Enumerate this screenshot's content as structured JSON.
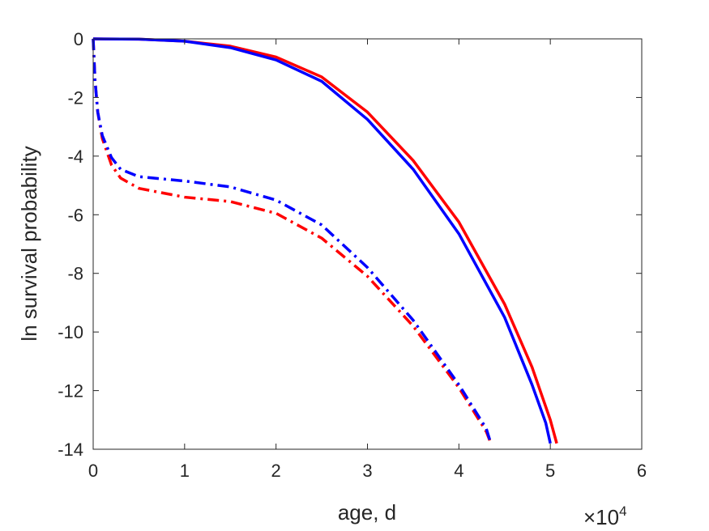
{
  "chart_data": {
    "type": "line",
    "title": "",
    "xlabel": "age, d",
    "ylabel": "ln survival probability",
    "x_exponent": {
      "base": "×10",
      "power": "4"
    },
    "xlim": [
      0,
      60000
    ],
    "ylim": [
      -14,
      0
    ],
    "x_ticks": [
      0,
      10000,
      20000,
      30000,
      40000,
      50000,
      60000
    ],
    "x_tick_labels": [
      "0",
      "1",
      "2",
      "3",
      "4",
      "5",
      "6"
    ],
    "y_ticks": [
      0,
      -2,
      -4,
      -6,
      -8,
      -10,
      -12,
      -14
    ],
    "y_tick_labels": [
      "0",
      "-2",
      "-4",
      "-6",
      "-8",
      "-10",
      "-12",
      "-14"
    ],
    "grid": false,
    "legend": "none",
    "series": [
      {
        "color": "#ff0000",
        "style": "solid",
        "x": [
          0,
          5000,
          10000,
          15000,
          20000,
          25000,
          30000,
          35000,
          40000,
          45000,
          48000,
          50000,
          50700
        ],
        "y": [
          0,
          -0.01,
          -0.08,
          -0.25,
          -0.62,
          -1.3,
          -2.5,
          -4.15,
          -6.25,
          -9.05,
          -11.2,
          -13.0,
          -13.8
        ]
      },
      {
        "color": "#0000ff",
        "style": "solid",
        "x": [
          0,
          5000,
          10000,
          15000,
          20000,
          25000,
          30000,
          35000,
          40000,
          45000,
          48000,
          49500,
          50000
        ],
        "y": [
          0,
          -0.01,
          -0.08,
          -0.3,
          -0.72,
          -1.45,
          -2.75,
          -4.45,
          -6.65,
          -9.5,
          -11.8,
          -13.1,
          -13.8
        ]
      },
      {
        "color": "#ff0000",
        "style": "dashdot",
        "x": [
          0,
          200,
          500,
          1000,
          2000,
          3000,
          5000,
          10000,
          15000,
          20000,
          25000,
          30000,
          35000,
          40000,
          43000,
          43500
        ],
        "y": [
          0,
          -1.4,
          -2.5,
          -3.4,
          -4.3,
          -4.75,
          -5.1,
          -5.4,
          -5.55,
          -5.95,
          -6.8,
          -8.1,
          -9.8,
          -11.9,
          -13.4,
          -13.8
        ]
      },
      {
        "color": "#0000ff",
        "style": "dashdot",
        "x": [
          0,
          200,
          500,
          1000,
          2000,
          3000,
          5000,
          10000,
          15000,
          20000,
          25000,
          30000,
          35000,
          40000,
          43000,
          43500
        ],
        "y": [
          0,
          -1.4,
          -2.5,
          -3.3,
          -4.05,
          -4.45,
          -4.7,
          -4.85,
          -5.05,
          -5.5,
          -6.35,
          -7.8,
          -9.6,
          -11.8,
          -13.3,
          -13.8
        ]
      }
    ]
  }
}
